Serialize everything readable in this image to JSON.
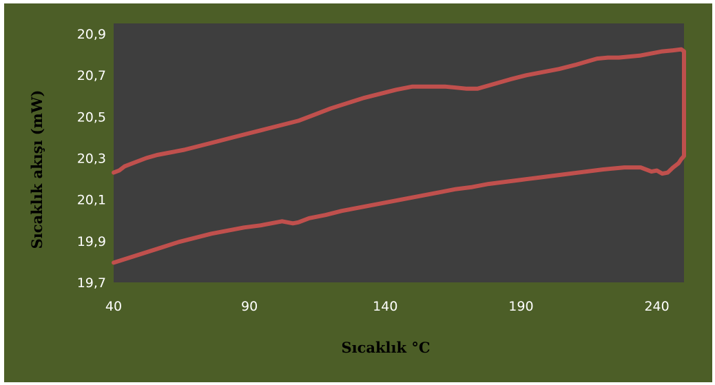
{
  "chart_data": {
    "type": "line",
    "title": "",
    "xlabel": "Sıcaklık °C",
    "ylabel": "Sıcaklık  akışı (mW)",
    "xlim": [
      40,
      250
    ],
    "ylim": [
      19.7,
      20.95
    ],
    "x_ticks": [
      40,
      90,
      140,
      190,
      240
    ],
    "x_tick_labels": [
      "40",
      "90",
      "140",
      "190",
      "240"
    ],
    "y_ticks": [
      19.7,
      19.9,
      20.1,
      20.3,
      20.5,
      20.7,
      20.9
    ],
    "y_tick_labels": [
      "19,7",
      "19,9",
      "20,1",
      "20,3",
      "20,5",
      "20,7",
      "20,9"
    ],
    "grid": false,
    "legend": "none",
    "colors": {
      "background": "#4c5e27",
      "plot_area": "#3e3e3e",
      "line": "#c0504d",
      "tick_text": "#ffffff",
      "axis_title": "#000000"
    },
    "series": [
      {
        "x": [
          40,
          42,
          44,
          48,
          52,
          56,
          60,
          66,
          72,
          78,
          84,
          90,
          96,
          102,
          108,
          114,
          120,
          126,
          132,
          138,
          144,
          150,
          154,
          158,
          162,
          166,
          170,
          174,
          178,
          182,
          186,
          192,
          198,
          204,
          210,
          214,
          218,
          222,
          226,
          230,
          234,
          238,
          242,
          246,
          249,
          250
        ],
        "y": [
          20.23,
          20.24,
          20.26,
          20.28,
          20.3,
          20.315,
          20.325,
          20.34,
          20.36,
          20.38,
          20.4,
          20.42,
          20.44,
          20.46,
          20.48,
          20.51,
          20.54,
          20.565,
          20.59,
          20.61,
          20.63,
          20.645,
          20.645,
          20.645,
          20.645,
          20.64,
          20.635,
          20.635,
          20.65,
          20.665,
          20.68,
          20.7,
          20.715,
          20.73,
          20.75,
          20.765,
          20.78,
          20.785,
          20.785,
          20.79,
          20.795,
          20.805,
          20.815,
          20.82,
          20.825,
          20.815
        ]
      },
      {
        "x": [
          40,
          46,
          52,
          58,
          64,
          70,
          76,
          82,
          88,
          94,
          100,
          102,
          104,
          106,
          108,
          112,
          118,
          124,
          130,
          136,
          142,
          148,
          154,
          160,
          166,
          172,
          178,
          184,
          190,
          196,
          202,
          208,
          214,
          220,
          224,
          228,
          232,
          234,
          236,
          238,
          240,
          242,
          244,
          246,
          248,
          249,
          250,
          250
        ],
        "y": [
          19.795,
          19.82,
          19.845,
          19.87,
          19.895,
          19.915,
          19.935,
          19.95,
          19.965,
          19.975,
          19.99,
          19.995,
          19.99,
          19.985,
          19.99,
          20.01,
          20.025,
          20.045,
          20.06,
          20.075,
          20.09,
          20.105,
          20.12,
          20.135,
          20.15,
          20.16,
          20.175,
          20.185,
          20.195,
          20.205,
          20.215,
          20.225,
          20.235,
          20.245,
          20.25,
          20.255,
          20.255,
          20.255,
          20.245,
          20.235,
          20.24,
          20.225,
          20.23,
          20.255,
          20.275,
          20.295,
          20.31,
          20.815
        ]
      }
    ]
  }
}
